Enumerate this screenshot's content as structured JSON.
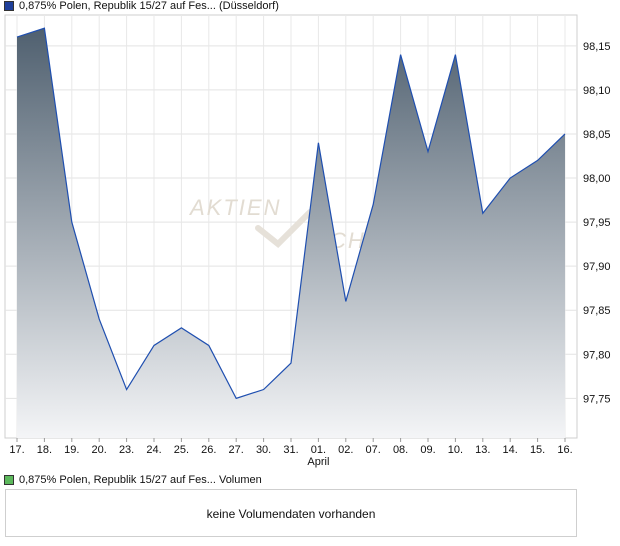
{
  "legend_top": {
    "label": "0,875% Polen, Republik 15/27 auf Fes... (Düsseldorf)",
    "color": "#1f3f9a"
  },
  "legend_bottom": {
    "label": "0,875% Polen, Republik 15/27 auf Fes... Volumen",
    "color": "#5cb85c"
  },
  "watermark": {
    "text": "AKTIEN",
    "text2": "CHECK"
  },
  "volume": {
    "message": "keine Volumendaten vorhanden"
  },
  "chart_data": {
    "type": "area",
    "x": [
      "17.",
      "18.",
      "19.",
      "20.",
      "23.",
      "24.",
      "25.",
      "26.",
      "27.",
      "30.",
      "31.",
      "01.",
      "02.",
      "07.",
      "08.",
      "09.",
      "10.",
      "13.",
      "14.",
      "15.",
      "16."
    ],
    "values": [
      98.16,
      98.17,
      97.95,
      97.84,
      97.76,
      97.81,
      97.83,
      97.81,
      97.75,
      97.76,
      97.79,
      98.04,
      97.86,
      97.97,
      98.14,
      98.03,
      98.14,
      97.96,
      98.0,
      98.02,
      98.05
    ],
    "month_label": {
      "after_index": 11,
      "text": "April"
    },
    "y_ticks": [
      "98,15",
      "98,10",
      "98,05",
      "98,00",
      "97,95",
      "97,90",
      "97,85",
      "97,80",
      "97,75"
    ],
    "y_tick_values": [
      98.15,
      98.1,
      98.05,
      98.0,
      97.95,
      97.9,
      97.85,
      97.8,
      97.75
    ],
    "ylim": [
      97.705,
      98.185
    ],
    "line_color": "#1f4fb0",
    "fill_top": "#4a5b6b",
    "fill_bottom": "#f4f5f7",
    "grid": true
  }
}
